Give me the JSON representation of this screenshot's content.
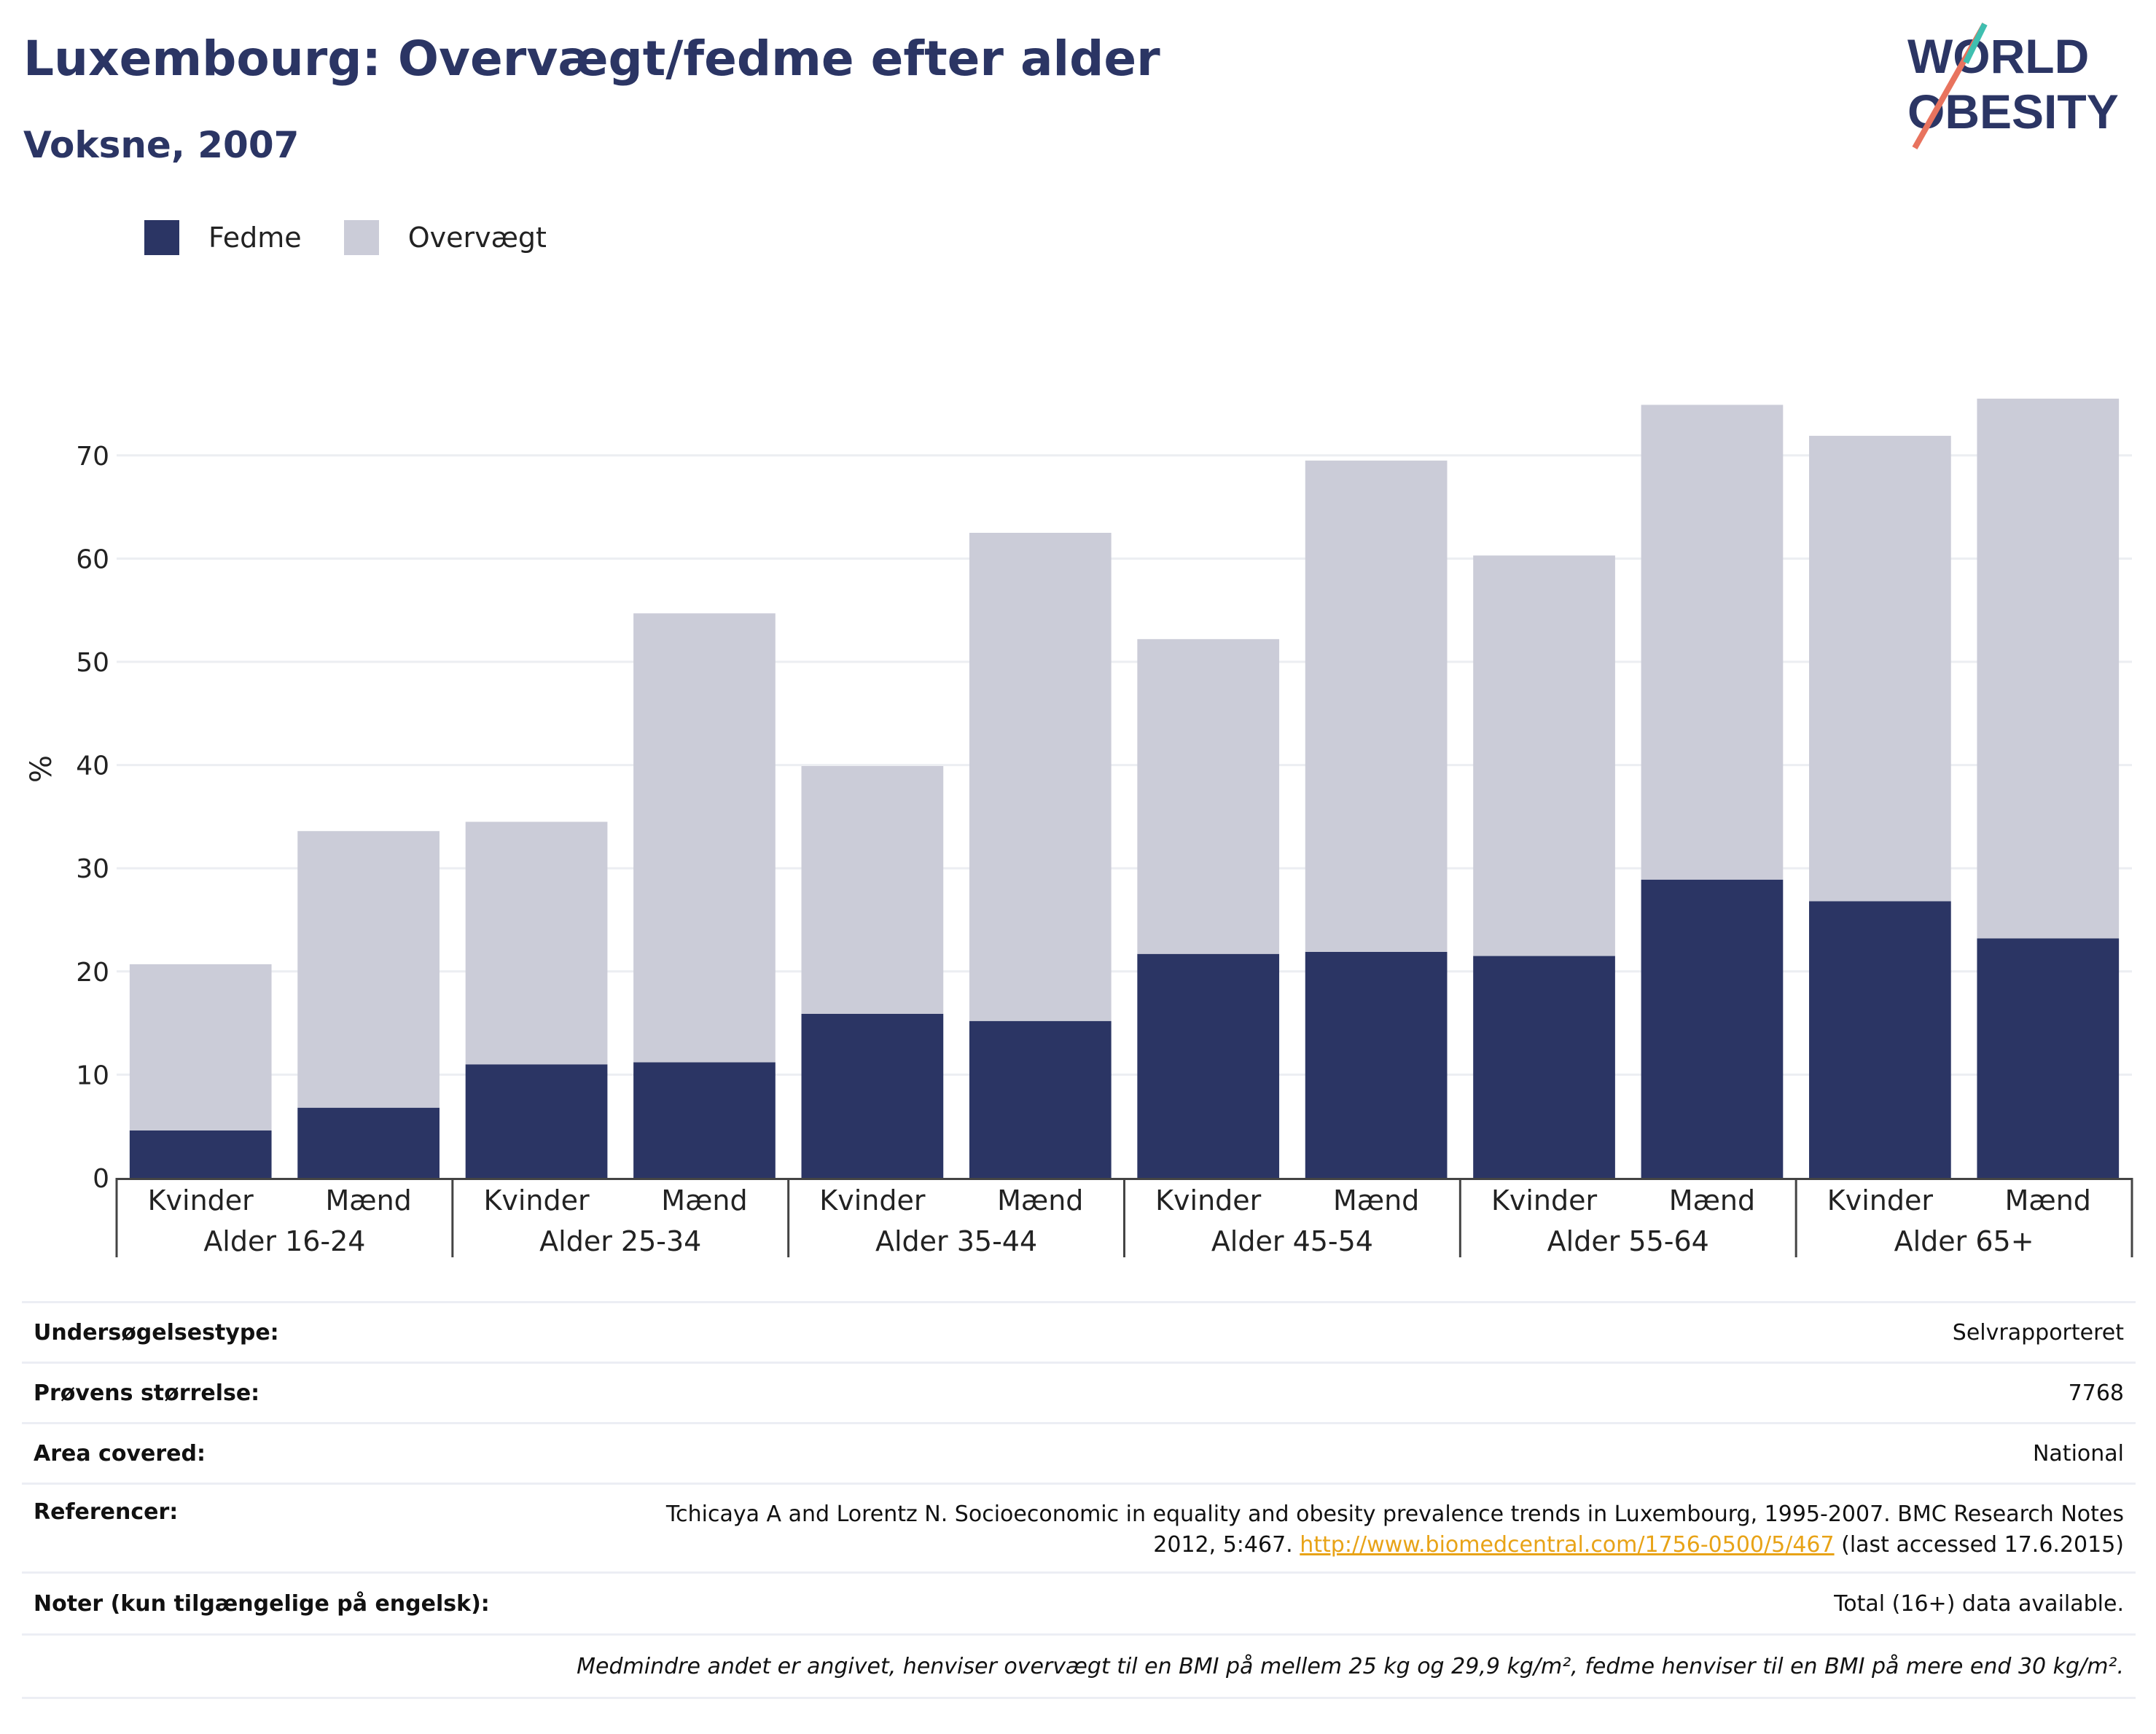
{
  "header": {
    "title": "Luxembourg: Overvægt/fedme efter alder",
    "subtitle": "Voksne, 2007"
  },
  "logo": {
    "line1": "WORLD",
    "line2": "OBESITY"
  },
  "legend": [
    {
      "label": "Fedme",
      "color": "#2b3564"
    },
    {
      "label": "Overvægt",
      "color": "#cbccd8"
    }
  ],
  "chart_data": {
    "type": "bar",
    "stacked": true,
    "ylabel": "%",
    "ylim": [
      0,
      80
    ],
    "yticks": [
      0,
      10,
      20,
      30,
      40,
      50,
      60,
      70
    ],
    "grid": true,
    "legend_position": "top-left",
    "groups": [
      "Alder 16-24",
      "Alder 25-34",
      "Alder 35-44",
      "Alder 45-54",
      "Alder 55-64",
      "Alder 65+"
    ],
    "categories": [
      "Kvinder",
      "Mænd",
      "Kvinder",
      "Mænd",
      "Kvinder",
      "Mænd",
      "Kvinder",
      "Mænd",
      "Kvinder",
      "Mænd",
      "Kvinder",
      "Mænd"
    ],
    "series": [
      {
        "name": "Fedme",
        "color": "#2b3564",
        "values": [
          4.6,
          6.8,
          11.0,
          11.2,
          15.9,
          15.2,
          21.7,
          21.9,
          21.5,
          28.9,
          26.8,
          23.2
        ]
      },
      {
        "name": "Overvægt",
        "color": "#cbccd8",
        "values": [
          16.1,
          26.8,
          23.5,
          43.5,
          24.0,
          47.3,
          30.5,
          47.6,
          38.8,
          46.0,
          45.1,
          52.3
        ]
      }
    ],
    "totals": [
      20.7,
      33.6,
      34.5,
      54.7,
      39.9,
      62.5,
      52.2,
      69.5,
      60.3,
      74.9,
      71.9,
      75.5
    ]
  },
  "info": {
    "survey_type_label": "Undersøgelsestype:",
    "survey_type_value": "Selvrapporteret",
    "sample_size_label": "Prøvens størrelse:",
    "sample_size_value": "7768",
    "area_label": "Area covered:",
    "area_value": "National",
    "references_label": "Referencer:",
    "references_line1": "Tchicaya A and Lorentz N. Socioeconomic in equality and obesity prevalence trends in Luxembourg, 1995-2007. BMC Research Notes",
    "references_line2_pre": "2012, 5:467. ",
    "references_link": "http://www.biomedcentral.com/1756-0500/5/467",
    "references_line2_post": " (last accessed 17.6.2015)",
    "notes_label": "Noter (kun tilgængelige på engelsk):",
    "notes_value": "Total (16+) data available.",
    "footnote": "Medmindre andet er angivet, henviser overvægt til en BMI på mellem 25 kg og 29,9 kg/m², fedme henviser til en BMI på mere end 30 kg/m²."
  }
}
